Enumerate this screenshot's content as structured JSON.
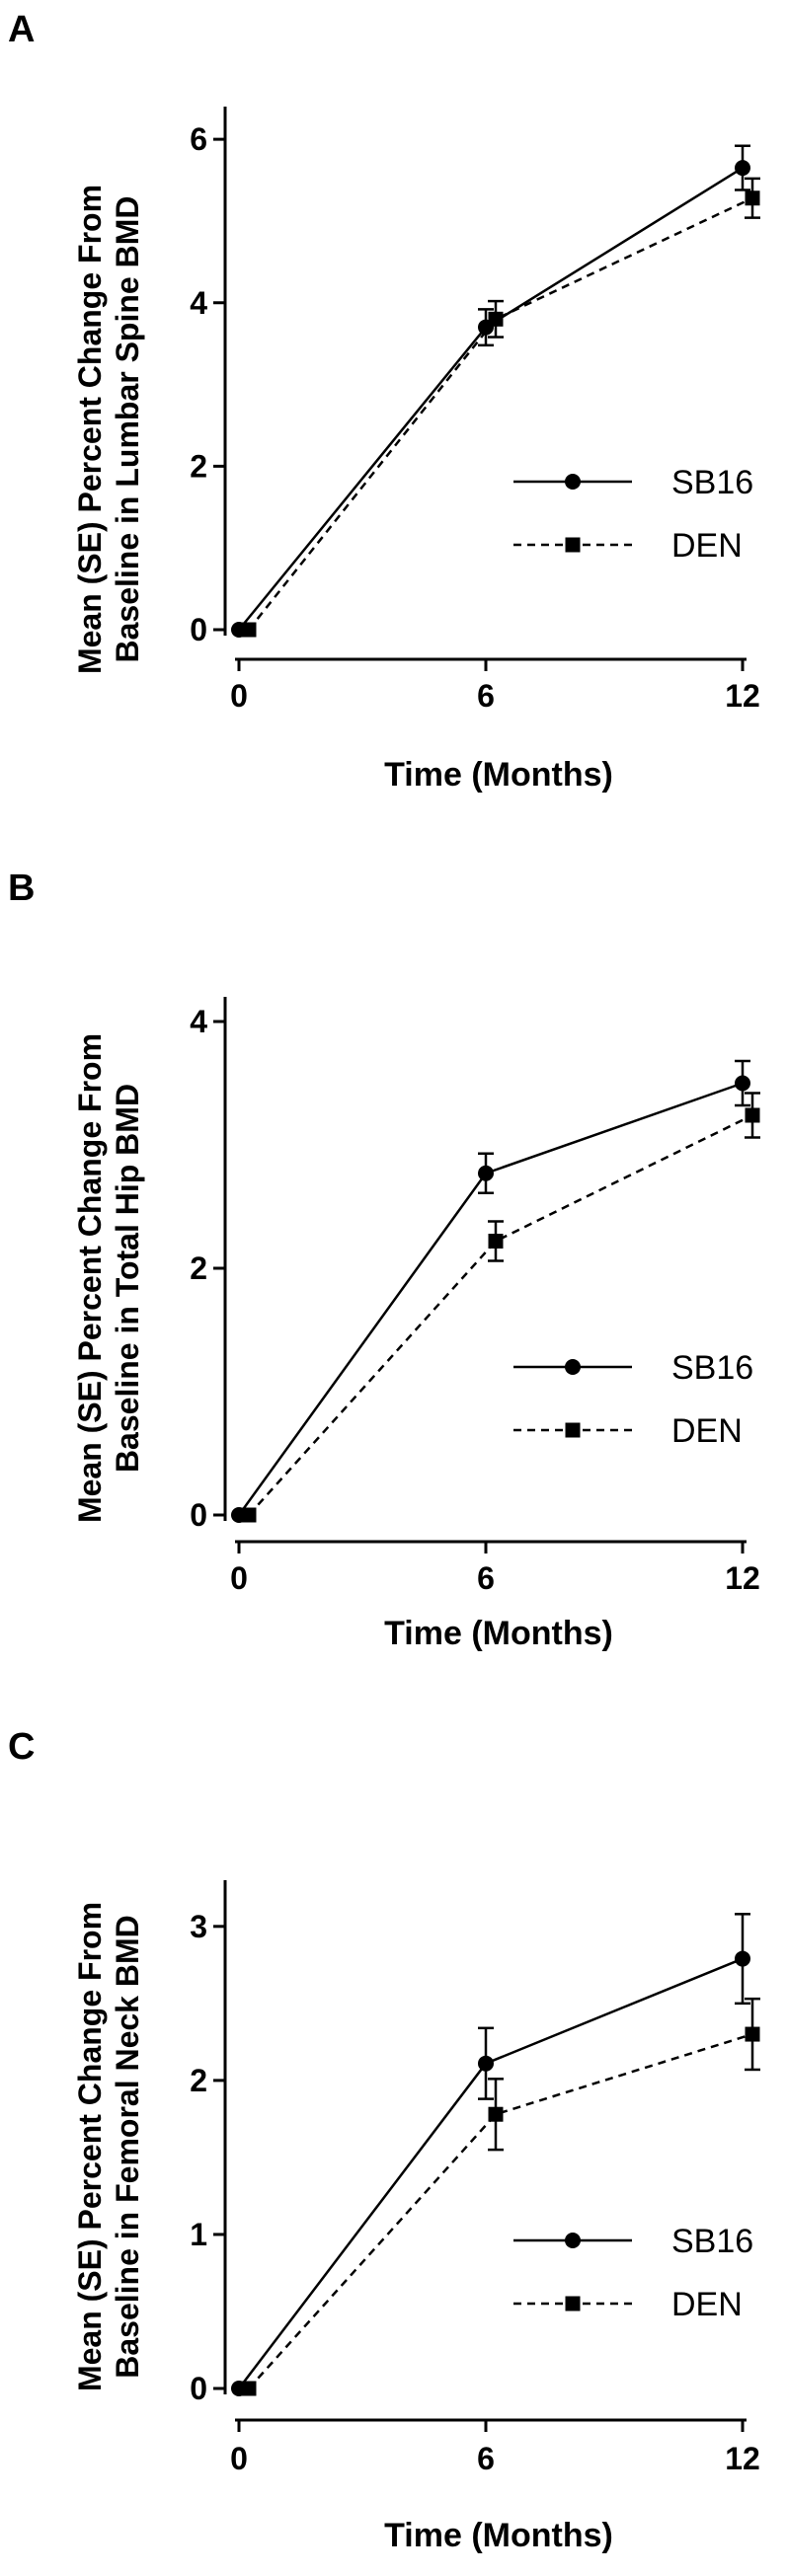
{
  "chart_data": [
    {
      "panel": "A",
      "type": "line",
      "ylabel_line1": "Mean (SE) Percent Change From",
      "ylabel_line2": "Baseline in Lumbar Spine BMD",
      "xlabel": "Time (Months)",
      "x": [
        0,
        6,
        12
      ],
      "x_ticks": [
        "0",
        "6",
        "12"
      ],
      "ylim": [
        0,
        6.4
      ],
      "y_ticks": [
        0,
        2,
        4,
        6
      ],
      "series": [
        {
          "name": "SB16",
          "marker": "circle",
          "line": "solid",
          "values": [
            0,
            3.7,
            5.65
          ],
          "se": [
            0,
            0.22,
            0.27
          ]
        },
        {
          "name": "DEN",
          "marker": "square",
          "line": "dashed",
          "values": [
            0,
            3.8,
            5.28
          ],
          "se": [
            0,
            0.22,
            0.24
          ]
        }
      ],
      "legend_position": "lower-right"
    },
    {
      "panel": "B",
      "type": "line",
      "ylabel_line1": "Mean (SE) Percent Change From",
      "ylabel_line2": "Baseline in Total Hip BMD",
      "xlabel": "Time (Months)",
      "x": [
        0,
        6,
        12
      ],
      "x_ticks": [
        "0",
        "6",
        "12"
      ],
      "ylim": [
        0,
        4.2
      ],
      "y_ticks": [
        0,
        2,
        4
      ],
      "series": [
        {
          "name": "SB16",
          "marker": "circle",
          "line": "solid",
          "values": [
            0,
            2.77,
            3.5
          ],
          "se": [
            0,
            0.16,
            0.18
          ]
        },
        {
          "name": "DEN",
          "marker": "square",
          "line": "dashed",
          "values": [
            0,
            2.22,
            3.24
          ],
          "se": [
            0,
            0.16,
            0.18
          ]
        }
      ],
      "legend_position": "lower-right"
    },
    {
      "panel": "C",
      "type": "line",
      "ylabel_line1": "Mean (SE) Percent Change From",
      "ylabel_line2": "Baseline in Femoral Neck BMD",
      "xlabel": "Time (Months)",
      "x": [
        0,
        6,
        12
      ],
      "x_ticks": [
        "0",
        "6",
        "12"
      ],
      "ylim": [
        0,
        3.3
      ],
      "y_ticks": [
        0,
        1,
        2,
        3
      ],
      "series": [
        {
          "name": "SB16",
          "marker": "circle",
          "line": "solid",
          "values": [
            0,
            2.11,
            2.79
          ],
          "se": [
            0,
            0.23,
            0.29
          ]
        },
        {
          "name": "DEN",
          "marker": "square",
          "line": "dashed",
          "values": [
            0,
            1.78,
            2.3
          ],
          "se": [
            0,
            0.23,
            0.23
          ]
        }
      ],
      "legend_position": "lower-right"
    }
  ]
}
